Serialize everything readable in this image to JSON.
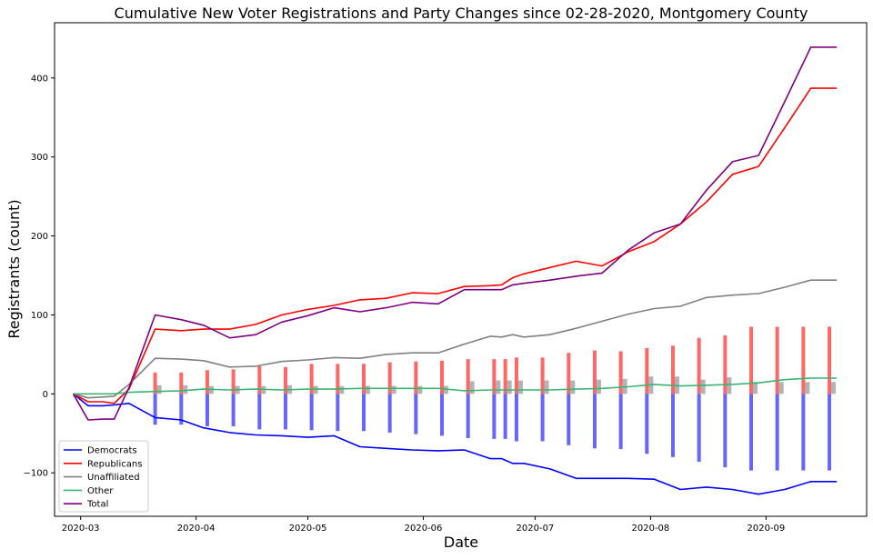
{
  "chart_data": {
    "type": "line",
    "title": "Cumulative New Voter Registrations and Party Changes since 02-28-2020, Montgomery County",
    "xlabel": "Date",
    "ylabel": "Registrants (count)",
    "x_ticks": [
      "2020-03",
      "2020-04",
      "2020-05",
      "2020-06",
      "2020-07",
      "2020-08",
      "2020-09"
    ],
    "y_ticks": [
      -100,
      0,
      100,
      200,
      300,
      400
    ],
    "xlim": [
      "2020-02-23",
      "2020-09-28"
    ],
    "ylim": [
      -155,
      470
    ],
    "grid": false,
    "legend_position": "lower-left",
    "x": [
      "2020-02-28",
      "2020-03-03",
      "2020-03-07",
      "2020-03-10",
      "2020-03-14",
      "2020-03-21",
      "2020-03-28",
      "2020-04-03",
      "2020-04-10",
      "2020-04-17",
      "2020-04-24",
      "2020-05-01",
      "2020-05-08",
      "2020-05-15",
      "2020-05-22",
      "2020-05-29",
      "2020-06-05",
      "2020-06-12",
      "2020-06-19",
      "2020-06-22",
      "2020-06-25",
      "2020-06-28",
      "2020-07-05",
      "2020-07-12",
      "2020-07-19",
      "2020-07-26",
      "2020-08-02",
      "2020-08-09",
      "2020-08-16",
      "2020-08-23",
      "2020-08-30",
      "2020-09-06",
      "2020-09-13",
      "2020-09-20"
    ],
    "series": [
      {
        "name": "Democrats",
        "color": "#0000ff",
        "values": [
          0,
          -15,
          -15,
          -14,
          -12,
          -30,
          -33,
          -43,
          -49,
          -52,
          -53,
          -55,
          -53,
          -67,
          -69,
          -71,
          -72,
          -71,
          -82,
          -82,
          -88,
          -88,
          -95,
          -107,
          -107,
          -107,
          -108,
          -121,
          -118,
          -121,
          -127,
          -121,
          -111,
          -111
        ]
      },
      {
        "name": "Republicans",
        "color": "#ff0000",
        "values": [
          0,
          -10,
          -10,
          -12,
          6,
          82,
          80,
          82,
          82,
          88,
          100,
          107,
          112,
          119,
          121,
          128,
          127,
          136,
          137,
          138,
          147,
          152,
          160,
          168,
          162,
          180,
          193,
          215,
          243,
          278,
          288,
          337,
          387,
          387
        ]
      },
      {
        "name": "Unaffiliated",
        "color": "#808080",
        "values": [
          0,
          -5,
          -4,
          -3,
          12,
          45,
          44,
          42,
          34,
          35,
          41,
          43,
          46,
          45,
          50,
          52,
          52,
          63,
          73,
          72,
          75,
          72,
          75,
          83,
          92,
          101,
          108,
          111,
          122,
          125,
          127,
          135,
          144,
          144
        ]
      },
      {
        "name": "Other",
        "color": "#3cb371",
        "values": [
          0,
          0,
          0,
          0,
          2,
          3,
          4,
          6,
          5,
          6,
          5,
          6,
          6,
          7,
          7,
          7,
          7,
          4,
          5,
          5,
          5,
          5,
          5,
          6,
          7,
          9,
          12,
          10,
          11,
          12,
          14,
          18,
          20,
          20
        ]
      },
      {
        "name": "Total",
        "color": "#800080",
        "values": [
          0,
          -33,
          -32,
          -32,
          8,
          100,
          94,
          87,
          71,
          75,
          91,
          99,
          109,
          104,
          109,
          116,
          114,
          132,
          132,
          132,
          138,
          140,
          144,
          149,
          153,
          182,
          204,
          215,
          258,
          294,
          302,
          370,
          439,
          439
        ]
      }
    ],
    "bars": {
      "dates": [
        "2020-03-21",
        "2020-03-28",
        "2020-04-04",
        "2020-04-11",
        "2020-04-18",
        "2020-04-25",
        "2020-05-02",
        "2020-05-09",
        "2020-05-16",
        "2020-05-23",
        "2020-05-30",
        "2020-06-06",
        "2020-06-13",
        "2020-06-20",
        "2020-06-23",
        "2020-06-26",
        "2020-07-03",
        "2020-07-10",
        "2020-07-17",
        "2020-07-24",
        "2020-07-31",
        "2020-08-07",
        "2020-08-14",
        "2020-08-21",
        "2020-08-28",
        "2020-09-04",
        "2020-09-11",
        "2020-09-18"
      ],
      "republicans": [
        27,
        27,
        30,
        31,
        35,
        34,
        38,
        38,
        38,
        40,
        41,
        42,
        44,
        44,
        44,
        46,
        46,
        52,
        55,
        54,
        58,
        61,
        71,
        74,
        85,
        85,
        85,
        85
      ],
      "democrats": [
        -39,
        -39,
        -41,
        -41,
        -45,
        -45,
        -46,
        -47,
        -47,
        -49,
        -51,
        -53,
        -56,
        -57,
        -57,
        -60,
        -60,
        -65,
        -69,
        -70,
        -76,
        -80,
        -86,
        -93,
        -97,
        -97,
        -97,
        -97
      ],
      "unaffiliated": [
        11,
        11,
        10,
        10,
        10,
        11,
        10,
        10,
        10,
        10,
        10,
        10,
        16,
        17,
        17,
        17,
        17,
        17,
        18,
        19,
        22,
        22,
        18,
        21,
        15,
        15,
        15,
        15
      ],
      "rep_color": "#ff0000",
      "dem_color": "#0000ff",
      "unaff_color": "#808080",
      "opacity": 0.6
    }
  }
}
